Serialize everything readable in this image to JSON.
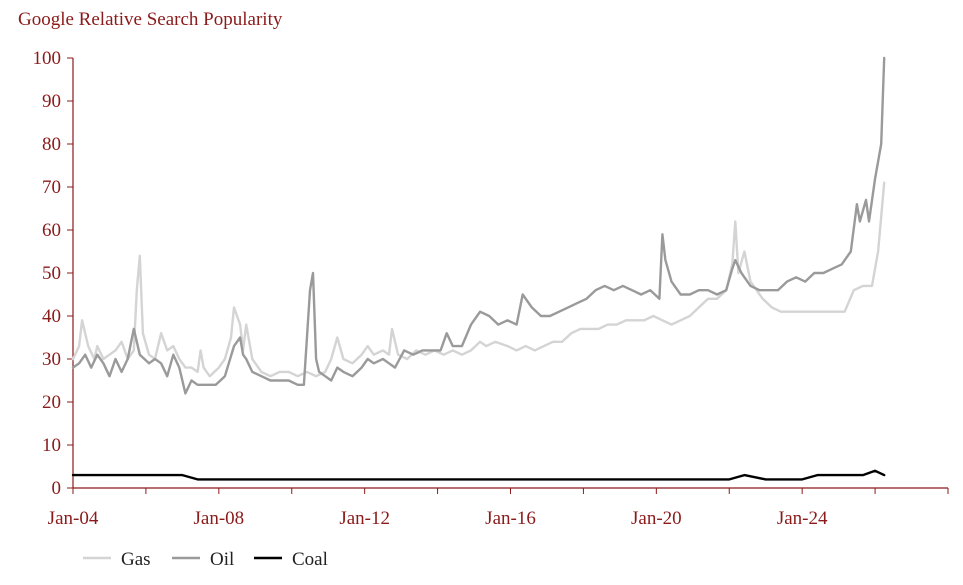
{
  "chart_data": {
    "type": "line",
    "title": "Google Relative Search Popularity",
    "xlabel": "",
    "ylabel": "",
    "ylim": [
      0,
      100
    ],
    "yticks": [
      0,
      10,
      20,
      30,
      40,
      50,
      60,
      70,
      80,
      90,
      100
    ],
    "xlim": [
      "2004-01",
      "2028-01"
    ],
    "xtick_labels": [
      "Jan-04",
      "Jan-08",
      "Jan-12",
      "Jan-16",
      "Jan-20",
      "Jan-24"
    ],
    "grid": false,
    "legend_position": "bottom-left",
    "series": [
      {
        "name": "Gas",
        "color": "#d4d4d4",
        "points": [
          [
            "2004-01",
            30
          ],
          [
            "2004-03",
            33
          ],
          [
            "2004-04",
            39
          ],
          [
            "2004-06",
            33
          ],
          [
            "2004-08",
            30
          ],
          [
            "2004-09",
            33
          ],
          [
            "2004-11",
            30
          ],
          [
            "2005-01",
            31
          ],
          [
            "2005-03",
            32
          ],
          [
            "2005-05",
            34
          ],
          [
            "2005-07",
            30
          ],
          [
            "2005-09",
            32
          ],
          [
            "2005-10",
            46
          ],
          [
            "2005-11",
            54
          ],
          [
            "2005-12",
            36
          ],
          [
            "2006-02",
            31
          ],
          [
            "2006-04",
            30
          ],
          [
            "2006-06",
            36
          ],
          [
            "2006-08",
            32
          ],
          [
            "2006-10",
            33
          ],
          [
            "2006-12",
            30
          ],
          [
            "2007-02",
            28
          ],
          [
            "2007-04",
            28
          ],
          [
            "2007-06",
            27
          ],
          [
            "2007-07",
            32
          ],
          [
            "2007-08",
            28
          ],
          [
            "2007-10",
            26
          ],
          [
            "2008-01",
            28
          ],
          [
            "2008-03",
            30
          ],
          [
            "2008-05",
            35
          ],
          [
            "2008-06",
            42
          ],
          [
            "2008-08",
            38
          ],
          [
            "2008-09",
            32
          ],
          [
            "2008-10",
            38
          ],
          [
            "2008-12",
            30
          ],
          [
            "2009-03",
            27
          ],
          [
            "2009-06",
            26
          ],
          [
            "2009-09",
            27
          ],
          [
            "2009-12",
            27
          ],
          [
            "2010-03",
            26
          ],
          [
            "2010-06",
            27
          ],
          [
            "2010-09",
            26
          ],
          [
            "2010-12",
            27
          ],
          [
            "2011-02",
            30
          ],
          [
            "2011-04",
            35
          ],
          [
            "2011-06",
            30
          ],
          [
            "2011-09",
            29
          ],
          [
            "2011-12",
            31
          ],
          [
            "2012-02",
            33
          ],
          [
            "2012-04",
            31
          ],
          [
            "2012-07",
            32
          ],
          [
            "2012-09",
            31
          ],
          [
            "2012-10",
            37
          ],
          [
            "2012-12",
            31
          ],
          [
            "2013-03",
            30
          ],
          [
            "2013-06",
            32
          ],
          [
            "2013-09",
            31
          ],
          [
            "2013-12",
            32
          ],
          [
            "2014-03",
            31
          ],
          [
            "2014-06",
            32
          ],
          [
            "2014-09",
            31
          ],
          [
            "2014-12",
            32
          ],
          [
            "2015-03",
            34
          ],
          [
            "2015-05",
            33
          ],
          [
            "2015-08",
            34
          ],
          [
            "2015-12",
            33
          ],
          [
            "2016-03",
            32
          ],
          [
            "2016-06",
            33
          ],
          [
            "2016-09",
            32
          ],
          [
            "2016-12",
            33
          ],
          [
            "2017-03",
            34
          ],
          [
            "2017-06",
            34
          ],
          [
            "2017-09",
            36
          ],
          [
            "2017-12",
            37
          ],
          [
            "2018-03",
            37
          ],
          [
            "2018-06",
            37
          ],
          [
            "2018-09",
            38
          ],
          [
            "2018-12",
            38
          ],
          [
            "2019-03",
            39
          ],
          [
            "2019-06",
            39
          ],
          [
            "2019-09",
            39
          ],
          [
            "2019-12",
            40
          ],
          [
            "2020-03",
            39
          ],
          [
            "2020-06",
            38
          ],
          [
            "2020-09",
            39
          ],
          [
            "2020-12",
            40
          ],
          [
            "2021-03",
            42
          ],
          [
            "2021-06",
            44
          ],
          [
            "2021-09",
            44
          ],
          [
            "2021-12",
            46
          ],
          [
            "2022-02",
            52
          ],
          [
            "2022-03",
            62
          ],
          [
            "2022-04",
            50
          ],
          [
            "2022-06",
            55
          ],
          [
            "2022-08",
            48
          ],
          [
            "2022-10",
            46
          ],
          [
            "2022-12",
            44
          ],
          [
            "2023-03",
            42
          ],
          [
            "2023-06",
            41
          ],
          [
            "2023-09",
            41
          ],
          [
            "2023-12",
            41
          ],
          [
            "2024-03",
            41
          ],
          [
            "2024-06",
            41
          ],
          [
            "2024-09",
            41
          ],
          [
            "2024-12",
            41
          ],
          [
            "2025-03",
            41
          ],
          [
            "2025-06",
            46
          ],
          [
            "2025-09",
            47
          ],
          [
            "2025-12",
            47
          ],
          [
            "2026-02",
            55
          ],
          [
            "2026-04",
            71
          ]
        ]
      },
      {
        "name": "Oil",
        "color": "#9a9a9a",
        "points": [
          [
            "2004-01",
            28
          ],
          [
            "2004-03",
            29
          ],
          [
            "2004-05",
            31
          ],
          [
            "2004-07",
            28
          ],
          [
            "2004-09",
            31
          ],
          [
            "2004-11",
            29
          ],
          [
            "2005-01",
            26
          ],
          [
            "2005-03",
            30
          ],
          [
            "2005-05",
            27
          ],
          [
            "2005-07",
            30
          ],
          [
            "2005-09",
            37
          ],
          [
            "2005-11",
            31
          ],
          [
            "2006-02",
            29
          ],
          [
            "2006-04",
            30
          ],
          [
            "2006-06",
            29
          ],
          [
            "2006-08",
            26
          ],
          [
            "2006-10",
            31
          ],
          [
            "2006-12",
            28
          ],
          [
            "2007-02",
            22
          ],
          [
            "2007-04",
            25
          ],
          [
            "2007-06",
            24
          ],
          [
            "2007-09",
            24
          ],
          [
            "2007-12",
            24
          ],
          [
            "2008-03",
            26
          ],
          [
            "2008-06",
            33
          ],
          [
            "2008-08",
            35
          ],
          [
            "2008-09",
            31
          ],
          [
            "2008-10",
            30
          ],
          [
            "2008-12",
            27
          ],
          [
            "2009-03",
            26
          ],
          [
            "2009-06",
            25
          ],
          [
            "2009-09",
            25
          ],
          [
            "2009-12",
            25
          ],
          [
            "2010-03",
            24
          ],
          [
            "2010-05",
            24
          ],
          [
            "2010-07",
            46
          ],
          [
            "2010-08",
            50
          ],
          [
            "2010-09",
            30
          ],
          [
            "2010-10",
            27
          ],
          [
            "2010-12",
            26
          ],
          [
            "2011-02",
            25
          ],
          [
            "2011-04",
            28
          ],
          [
            "2011-06",
            27
          ],
          [
            "2011-09",
            26
          ],
          [
            "2011-12",
            28
          ],
          [
            "2012-02",
            30
          ],
          [
            "2012-04",
            29
          ],
          [
            "2012-07",
            30
          ],
          [
            "2012-09",
            29
          ],
          [
            "2012-11",
            28
          ],
          [
            "2013-02",
            32
          ],
          [
            "2013-05",
            31
          ],
          [
            "2013-08",
            32
          ],
          [
            "2013-11",
            32
          ],
          [
            "2014-02",
            32
          ],
          [
            "2014-04",
            36
          ],
          [
            "2014-06",
            33
          ],
          [
            "2014-09",
            33
          ],
          [
            "2014-12",
            38
          ],
          [
            "2015-03",
            41
          ],
          [
            "2015-06",
            40
          ],
          [
            "2015-09",
            38
          ],
          [
            "2015-12",
            39
          ],
          [
            "2016-03",
            38
          ],
          [
            "2016-05",
            45
          ],
          [
            "2016-08",
            42
          ],
          [
            "2016-11",
            40
          ],
          [
            "2017-02",
            40
          ],
          [
            "2017-05",
            41
          ],
          [
            "2017-08",
            42
          ],
          [
            "2017-11",
            43
          ],
          [
            "2018-02",
            44
          ],
          [
            "2018-05",
            46
          ],
          [
            "2018-08",
            47
          ],
          [
            "2018-11",
            46
          ],
          [
            "2019-02",
            47
          ],
          [
            "2019-05",
            46
          ],
          [
            "2019-08",
            45
          ],
          [
            "2019-11",
            46
          ],
          [
            "2020-02",
            44
          ],
          [
            "2020-03",
            59
          ],
          [
            "2020-04",
            53
          ],
          [
            "2020-06",
            48
          ],
          [
            "2020-09",
            45
          ],
          [
            "2020-12",
            45
          ],
          [
            "2021-03",
            46
          ],
          [
            "2021-06",
            46
          ],
          [
            "2021-09",
            45
          ],
          [
            "2021-12",
            46
          ],
          [
            "2022-02",
            51
          ],
          [
            "2022-03",
            53
          ],
          [
            "2022-05",
            50
          ],
          [
            "2022-08",
            47
          ],
          [
            "2022-11",
            46
          ],
          [
            "2023-02",
            46
          ],
          [
            "2023-05",
            46
          ],
          [
            "2023-08",
            48
          ],
          [
            "2023-11",
            49
          ],
          [
            "2024-02",
            48
          ],
          [
            "2024-05",
            50
          ],
          [
            "2024-08",
            50
          ],
          [
            "2024-11",
            51
          ],
          [
            "2025-02",
            52
          ],
          [
            "2025-05",
            55
          ],
          [
            "2025-07",
            66
          ],
          [
            "2025-08",
            62
          ],
          [
            "2025-10",
            67
          ],
          [
            "2025-11",
            62
          ],
          [
            "2026-01",
            72
          ],
          [
            "2026-03",
            80
          ],
          [
            "2026-04",
            100
          ]
        ]
      },
      {
        "name": "Coal",
        "color": "#000000",
        "points": [
          [
            "2004-01",
            3
          ],
          [
            "2005-01",
            3
          ],
          [
            "2005-09",
            3
          ],
          [
            "2006-01",
            3
          ],
          [
            "2006-06",
            3
          ],
          [
            "2007-01",
            3
          ],
          [
            "2007-06",
            2
          ],
          [
            "2008-01",
            2
          ],
          [
            "2008-06",
            2
          ],
          [
            "2009-01",
            2
          ],
          [
            "2010-01",
            2
          ],
          [
            "2011-01",
            2
          ],
          [
            "2012-01",
            2
          ],
          [
            "2013-01",
            2
          ],
          [
            "2014-01",
            2
          ],
          [
            "2015-01",
            2
          ],
          [
            "2016-01",
            2
          ],
          [
            "2017-01",
            2
          ],
          [
            "2018-01",
            2
          ],
          [
            "2019-01",
            2
          ],
          [
            "2020-01",
            2
          ],
          [
            "2021-01",
            2
          ],
          [
            "2022-01",
            2
          ],
          [
            "2022-06",
            3
          ],
          [
            "2023-01",
            2
          ],
          [
            "2024-01",
            2
          ],
          [
            "2024-06",
            3
          ],
          [
            "2025-01",
            3
          ],
          [
            "2025-09",
            3
          ],
          [
            "2026-01",
            4
          ],
          [
            "2026-04",
            3
          ]
        ]
      }
    ]
  }
}
